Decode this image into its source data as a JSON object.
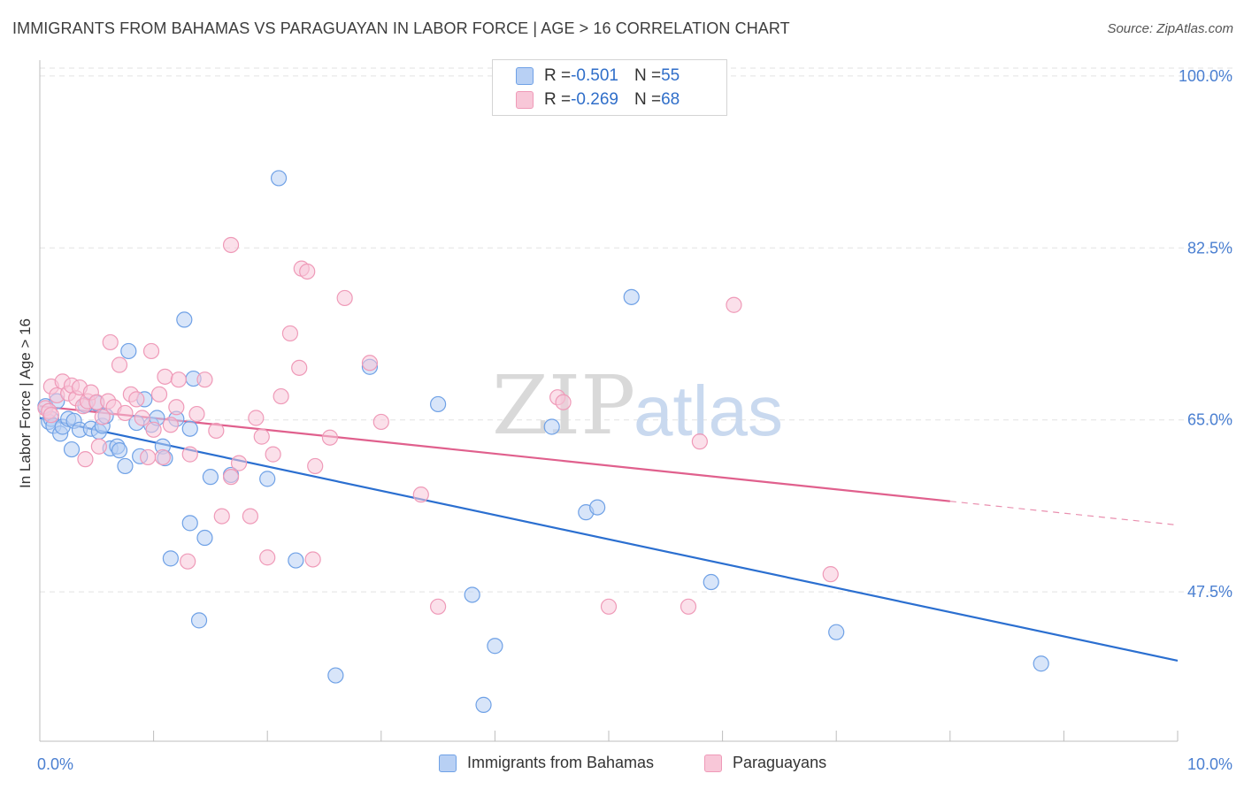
{
  "chart_data": {
    "type": "scatter",
    "title": "IMMIGRANTS FROM BAHAMAS VS PARAGUAYAN IN LABOR FORCE | AGE > 16 CORRELATION CHART",
    "source": "Source: ZipAtlas.com",
    "xlabel": "",
    "ylabel": "In Labor Force | Age > 16",
    "xlim": [
      0,
      10
    ],
    "ylim": [
      32.3,
      100.8
    ],
    "x_tick_labels": [
      "0.0%",
      "10.0%"
    ],
    "y_ticks": [
      100.0,
      82.5,
      65.0,
      47.5
    ],
    "y_tick_labels": [
      "100.0%",
      "82.5%",
      "65.0%",
      "47.5%"
    ],
    "watermark": {
      "zip": "ZIP",
      "atlas": "atlas"
    },
    "legend": [
      {
        "r_label": "R = ",
        "r": "-0.501",
        "n_label": "N = ",
        "n": "55"
      },
      {
        "r_label": "R = ",
        "r": "-0.269",
        "n_label": "N = ",
        "n": "68"
      }
    ],
    "series": [
      {
        "name": "Immigrants from Bahamas",
        "color": "#6fa1e6",
        "fill": "#b8d0f4",
        "line_color": "#2b6fd0",
        "trend": {
          "x0": 0.0,
          "y0": 65.2,
          "x1": 10.0,
          "y1": 40.5
        },
        "points": [
          [
            0.05,
            66.4
          ],
          [
            0.08,
            64.8
          ],
          [
            0.1,
            65.1
          ],
          [
            0.12,
            64.4
          ],
          [
            0.15,
            66.9
          ],
          [
            0.18,
            63.6
          ],
          [
            0.2,
            64.3
          ],
          [
            0.25,
            65.1
          ],
          [
            0.3,
            64.9
          ],
          [
            0.35,
            64.0
          ],
          [
            0.4,
            66.5
          ],
          [
            0.45,
            64.1
          ],
          [
            0.5,
            66.7
          ],
          [
            0.52,
            63.8
          ],
          [
            0.55,
            64.4
          ],
          [
            0.58,
            65.4
          ],
          [
            0.62,
            62.1
          ],
          [
            0.68,
            62.3
          ],
          [
            0.7,
            61.9
          ],
          [
            0.75,
            60.3
          ],
          [
            0.78,
            72.0
          ],
          [
            0.85,
            64.7
          ],
          [
            0.88,
            61.3
          ],
          [
            0.92,
            67.1
          ],
          [
            0.98,
            64.5
          ],
          [
            1.03,
            65.2
          ],
          [
            1.08,
            62.3
          ],
          [
            1.1,
            61.1
          ],
          [
            1.2,
            65.1
          ],
          [
            1.27,
            75.2
          ],
          [
            1.32,
            64.1
          ],
          [
            1.35,
            69.2
          ],
          [
            1.5,
            59.2
          ],
          [
            1.68,
            59.4
          ],
          [
            1.45,
            53.0
          ],
          [
            1.32,
            54.5
          ],
          [
            1.15,
            50.9
          ],
          [
            1.4,
            44.6
          ],
          [
            2.1,
            89.6
          ],
          [
            2.25,
            50.7
          ],
          [
            2.0,
            59.0
          ],
          [
            2.6,
            39.0
          ],
          [
            2.9,
            70.4
          ],
          [
            3.8,
            47.2
          ],
          [
            4.0,
            42.0
          ],
          [
            3.5,
            66.6
          ],
          [
            4.5,
            64.3
          ],
          [
            4.8,
            55.6
          ],
          [
            4.9,
            56.1
          ],
          [
            5.2,
            77.5
          ],
          [
            5.9,
            48.5
          ],
          [
            7.0,
            43.4
          ],
          [
            3.9,
            36.0
          ],
          [
            8.8,
            40.2
          ],
          [
            0.28,
            62.0
          ]
        ]
      },
      {
        "name": "Paraguayans",
        "color": "#ef9ab8",
        "fill": "#f8c7d8",
        "line_color": "#e0608d",
        "trend": {
          "x0": 0.0,
          "y0": 66.4,
          "x1": 10.0,
          "y1": 54.3
        },
        "trend_solid_until": 8.0,
        "points": [
          [
            0.05,
            66.2
          ],
          [
            0.08,
            65.9
          ],
          [
            0.1,
            68.4
          ],
          [
            0.15,
            67.5
          ],
          [
            0.2,
            68.9
          ],
          [
            0.25,
            67.7
          ],
          [
            0.28,
            68.5
          ],
          [
            0.32,
            67.2
          ],
          [
            0.35,
            68.3
          ],
          [
            0.38,
            66.4
          ],
          [
            0.42,
            66.9
          ],
          [
            0.45,
            67.8
          ],
          [
            0.5,
            66.8
          ],
          [
            0.52,
            62.3
          ],
          [
            0.55,
            65.3
          ],
          [
            0.6,
            66.9
          ],
          [
            0.62,
            72.9
          ],
          [
            0.65,
            66.3
          ],
          [
            0.7,
            70.6
          ],
          [
            0.75,
            65.7
          ],
          [
            0.8,
            67.6
          ],
          [
            0.85,
            67.1
          ],
          [
            0.9,
            65.2
          ],
          [
            0.95,
            61.2
          ],
          [
            0.98,
            72.0
          ],
          [
            1.0,
            64.0
          ],
          [
            1.05,
            67.6
          ],
          [
            1.08,
            61.2
          ],
          [
            1.1,
            69.4
          ],
          [
            1.15,
            64.5
          ],
          [
            1.2,
            66.3
          ],
          [
            1.22,
            69.1
          ],
          [
            1.32,
            61.5
          ],
          [
            1.38,
            65.6
          ],
          [
            1.45,
            69.1
          ],
          [
            1.55,
            63.9
          ],
          [
            1.68,
            59.2
          ],
          [
            1.75,
            60.6
          ],
          [
            1.85,
            55.2
          ],
          [
            1.9,
            65.2
          ],
          [
            1.95,
            63.3
          ],
          [
            2.0,
            51.0
          ],
          [
            2.05,
            61.5
          ],
          [
            2.12,
            67.4
          ],
          [
            2.2,
            73.8
          ],
          [
            2.28,
            70.3
          ],
          [
            2.3,
            80.4
          ],
          [
            2.35,
            80.1
          ],
          [
            2.4,
            50.8
          ],
          [
            2.42,
            60.3
          ],
          [
            2.55,
            63.2
          ],
          [
            2.68,
            77.4
          ],
          [
            1.68,
            82.8
          ],
          [
            2.9,
            70.8
          ],
          [
            3.0,
            64.8
          ],
          [
            3.35,
            57.4
          ],
          [
            3.5,
            46.0
          ],
          [
            4.55,
            67.3
          ],
          [
            4.6,
            66.8
          ],
          [
            5.0,
            46.0
          ],
          [
            5.7,
            46.0
          ],
          [
            5.8,
            62.8
          ],
          [
            6.1,
            76.7
          ],
          [
            6.95,
            49.3
          ],
          [
            1.6,
            55.2
          ],
          [
            1.3,
            50.6
          ],
          [
            0.1,
            65.5
          ],
          [
            0.4,
            61.0
          ]
        ]
      }
    ]
  }
}
